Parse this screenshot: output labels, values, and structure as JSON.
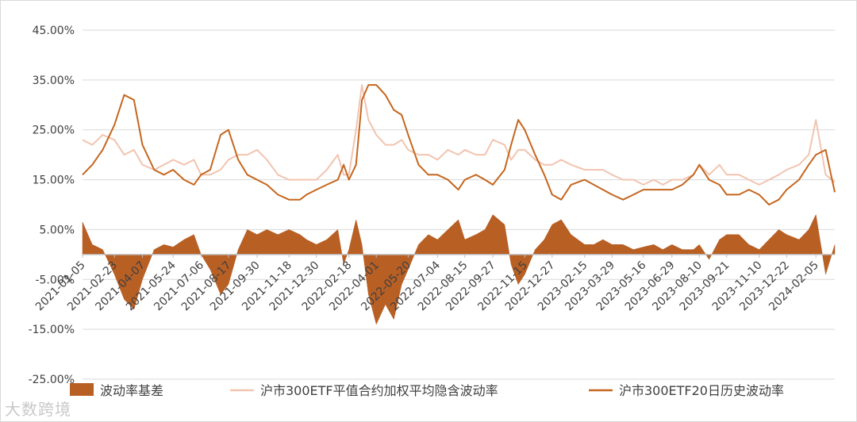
{
  "chart_data": {
    "type": "area",
    "title": "",
    "xlabel": "",
    "ylabel": "",
    "ylim": [
      -0.25,
      0.45
    ],
    "yticks": [
      "45.00%",
      "35.00%",
      "25.00%",
      "15.00%",
      "5.00%",
      "-5.00%",
      "-15.00%",
      "-25.00%"
    ],
    "ytick_values": [
      0.45,
      0.35,
      0.25,
      0.15,
      0.05,
      -0.05,
      -0.15,
      -0.25
    ],
    "xticks": [
      "2021-01-05",
      "2021-02-23",
      "2021-04-07",
      "2021-05-24",
      "2021-07-06",
      "2021-08-17",
      "2021-09-30",
      "2021-11-18",
      "2021-12-30",
      "2022-02-18",
      "2022-04-01",
      "2022-05-20",
      "2022-07-04",
      "2022-08-15",
      "2022-09-27",
      "2022-11-15",
      "2022-12-27",
      "2023-02-15",
      "2023-03-29",
      "2023-05-16",
      "2023-06-29",
      "2023-08-10",
      "2023-09-21",
      "2023-11-10",
      "2023-12-22",
      "2024-02-05"
    ],
    "grid": true,
    "legend_position": "bottom",
    "series": [
      {
        "name": "波动率基差",
        "style": "area",
        "color": "#b85f24",
        "points": [
          [
            "2021-01-05",
            0.065
          ],
          [
            "2021-01-20",
            0.02
          ],
          [
            "2021-02-05",
            0.01
          ],
          [
            "2021-02-23",
            -0.04
          ],
          [
            "2021-03-10",
            -0.09
          ],
          [
            "2021-03-25",
            -0.11
          ],
          [
            "2021-04-07",
            -0.05
          ],
          [
            "2021-04-25",
            0.01
          ],
          [
            "2021-05-10",
            0.02
          ],
          [
            "2021-05-24",
            0.015
          ],
          [
            "2021-06-10",
            0.03
          ],
          [
            "2021-06-25",
            0.04
          ],
          [
            "2021-07-06",
            0.0
          ],
          [
            "2021-07-20",
            -0.03
          ],
          [
            "2021-08-05",
            -0.08
          ],
          [
            "2021-08-17",
            -0.06
          ],
          [
            "2021-09-01",
            0.01
          ],
          [
            "2021-09-15",
            0.05
          ],
          [
            "2021-09-30",
            0.04
          ],
          [
            "2021-10-15",
            0.05
          ],
          [
            "2021-11-01",
            0.04
          ],
          [
            "2021-11-18",
            0.05
          ],
          [
            "2021-12-05",
            0.04
          ],
          [
            "2021-12-15",
            0.03
          ],
          [
            "2021-12-30",
            0.02
          ],
          [
            "2022-01-15",
            0.03
          ],
          [
            "2022-02-01",
            0.05
          ],
          [
            "2022-02-10",
            -0.02
          ],
          [
            "2022-02-18",
            0.01
          ],
          [
            "2022-03-01",
            0.07
          ],
          [
            "2022-03-10",
            0.02
          ],
          [
            "2022-03-20",
            -0.08
          ],
          [
            "2022-04-01",
            -0.14
          ],
          [
            "2022-04-15",
            -0.1
          ],
          [
            "2022-04-28",
            -0.13
          ],
          [
            "2022-05-10",
            -0.06
          ],
          [
            "2022-05-20",
            -0.03
          ],
          [
            "2022-06-05",
            0.02
          ],
          [
            "2022-06-20",
            0.04
          ],
          [
            "2022-07-04",
            0.03
          ],
          [
            "2022-07-20",
            0.05
          ],
          [
            "2022-08-05",
            0.07
          ],
          [
            "2022-08-15",
            0.03
          ],
          [
            "2022-09-01",
            0.04
          ],
          [
            "2022-09-15",
            0.05
          ],
          [
            "2022-09-27",
            0.08
          ],
          [
            "2022-10-15",
            0.06
          ],
          [
            "2022-10-25",
            -0.02
          ],
          [
            "2022-11-05",
            -0.06
          ],
          [
            "2022-11-15",
            -0.04
          ],
          [
            "2022-12-01",
            0.01
          ],
          [
            "2022-12-15",
            0.03
          ],
          [
            "2022-12-27",
            0.06
          ],
          [
            "2023-01-10",
            0.07
          ],
          [
            "2023-01-25",
            0.04
          ],
          [
            "2023-02-15",
            0.02
          ],
          [
            "2023-03-01",
            0.02
          ],
          [
            "2023-03-15",
            0.03
          ],
          [
            "2023-03-29",
            0.02
          ],
          [
            "2023-04-15",
            0.02
          ],
          [
            "2023-05-01",
            0.01
          ],
          [
            "2023-05-16",
            0.015
          ],
          [
            "2023-06-01",
            0.02
          ],
          [
            "2023-06-15",
            0.01
          ],
          [
            "2023-06-29",
            0.02
          ],
          [
            "2023-07-15",
            0.01
          ],
          [
            "2023-08-01",
            0.01
          ],
          [
            "2023-08-10",
            0.02
          ],
          [
            "2023-08-25",
            -0.01
          ],
          [
            "2023-09-10",
            0.03
          ],
          [
            "2023-09-21",
            0.04
          ],
          [
            "2023-10-10",
            0.04
          ],
          [
            "2023-10-25",
            0.02
          ],
          [
            "2023-11-10",
            0.01
          ],
          [
            "2023-11-25",
            0.03
          ],
          [
            "2023-12-10",
            0.05
          ],
          [
            "2023-12-22",
            0.04
          ],
          [
            "2024-01-10",
            0.03
          ],
          [
            "2024-01-25",
            0.05
          ],
          [
            "2024-02-05",
            0.08
          ],
          [
            "2024-02-20",
            -0.04
          ],
          [
            "2024-03-05",
            0.02
          ]
        ]
      },
      {
        "name": "沪市300ETF平值合约加权平均隐含波动率",
        "style": "line",
        "color": "#f2c4b0",
        "points": [
          [
            "2021-01-05",
            0.23
          ],
          [
            "2021-01-20",
            0.22
          ],
          [
            "2021-02-05",
            0.24
          ],
          [
            "2021-02-23",
            0.23
          ],
          [
            "2021-03-10",
            0.2
          ],
          [
            "2021-03-25",
            0.21
          ],
          [
            "2021-04-07",
            0.18
          ],
          [
            "2021-04-25",
            0.17
          ],
          [
            "2021-05-10",
            0.18
          ],
          [
            "2021-05-24",
            0.19
          ],
          [
            "2021-06-10",
            0.18
          ],
          [
            "2021-06-25",
            0.19
          ],
          [
            "2021-07-06",
            0.16
          ],
          [
            "2021-07-20",
            0.16
          ],
          [
            "2021-08-05",
            0.17
          ],
          [
            "2021-08-17",
            0.19
          ],
          [
            "2021-09-01",
            0.2
          ],
          [
            "2021-09-15",
            0.2
          ],
          [
            "2021-09-30",
            0.21
          ],
          [
            "2021-10-15",
            0.19
          ],
          [
            "2021-11-01",
            0.16
          ],
          [
            "2021-11-18",
            0.15
          ],
          [
            "2021-12-05",
            0.15
          ],
          [
            "2021-12-15",
            0.15
          ],
          [
            "2021-12-30",
            0.15
          ],
          [
            "2022-01-15",
            0.17
          ],
          [
            "2022-02-01",
            0.2
          ],
          [
            "2022-02-10",
            0.16
          ],
          [
            "2022-02-18",
            0.16
          ],
          [
            "2022-03-01",
            0.25
          ],
          [
            "2022-03-10",
            0.34
          ],
          [
            "2022-03-20",
            0.27
          ],
          [
            "2022-04-01",
            0.24
          ],
          [
            "2022-04-15",
            0.22
          ],
          [
            "2022-04-28",
            0.22
          ],
          [
            "2022-05-10",
            0.23
          ],
          [
            "2022-05-20",
            0.21
          ],
          [
            "2022-06-05",
            0.2
          ],
          [
            "2022-06-20",
            0.2
          ],
          [
            "2022-07-04",
            0.19
          ],
          [
            "2022-07-20",
            0.21
          ],
          [
            "2022-08-05",
            0.2
          ],
          [
            "2022-08-15",
            0.21
          ],
          [
            "2022-09-01",
            0.2
          ],
          [
            "2022-09-15",
            0.2
          ],
          [
            "2022-09-27",
            0.23
          ],
          [
            "2022-10-15",
            0.22
          ],
          [
            "2022-10-25",
            0.19
          ],
          [
            "2022-11-05",
            0.21
          ],
          [
            "2022-11-15",
            0.21
          ],
          [
            "2022-12-01",
            0.19
          ],
          [
            "2022-12-15",
            0.18
          ],
          [
            "2022-12-27",
            0.18
          ],
          [
            "2023-01-10",
            0.19
          ],
          [
            "2023-01-25",
            0.18
          ],
          [
            "2023-02-15",
            0.17
          ],
          [
            "2023-03-01",
            0.17
          ],
          [
            "2023-03-15",
            0.17
          ],
          [
            "2023-03-29",
            0.16
          ],
          [
            "2023-04-15",
            0.15
          ],
          [
            "2023-05-01",
            0.15
          ],
          [
            "2023-05-16",
            0.14
          ],
          [
            "2023-06-01",
            0.15
          ],
          [
            "2023-06-15",
            0.14
          ],
          [
            "2023-06-29",
            0.15
          ],
          [
            "2023-07-15",
            0.15
          ],
          [
            "2023-08-01",
            0.16
          ],
          [
            "2023-08-10",
            0.18
          ],
          [
            "2023-08-25",
            0.16
          ],
          [
            "2023-09-10",
            0.18
          ],
          [
            "2023-09-21",
            0.16
          ],
          [
            "2023-10-10",
            0.16
          ],
          [
            "2023-10-25",
            0.15
          ],
          [
            "2023-11-10",
            0.14
          ],
          [
            "2023-11-25",
            0.15
          ],
          [
            "2023-12-10",
            0.16
          ],
          [
            "2023-12-22",
            0.17
          ],
          [
            "2024-01-10",
            0.18
          ],
          [
            "2024-01-25",
            0.2
          ],
          [
            "2024-02-05",
            0.27
          ],
          [
            "2024-02-20",
            0.16
          ],
          [
            "2024-03-05",
            0.145
          ]
        ]
      },
      {
        "name": "沪市300ETF20日历史波动率",
        "style": "line",
        "color": "#c5661e",
        "points": [
          [
            "2021-01-05",
            0.16
          ],
          [
            "2021-01-20",
            0.18
          ],
          [
            "2021-02-05",
            0.21
          ],
          [
            "2021-02-23",
            0.26
          ],
          [
            "2021-03-10",
            0.32
          ],
          [
            "2021-03-25",
            0.31
          ],
          [
            "2021-04-07",
            0.22
          ],
          [
            "2021-04-25",
            0.17
          ],
          [
            "2021-05-10",
            0.16
          ],
          [
            "2021-05-24",
            0.17
          ],
          [
            "2021-06-10",
            0.15
          ],
          [
            "2021-06-25",
            0.14
          ],
          [
            "2021-07-06",
            0.16
          ],
          [
            "2021-07-20",
            0.17
          ],
          [
            "2021-08-05",
            0.24
          ],
          [
            "2021-08-17",
            0.25
          ],
          [
            "2021-09-01",
            0.19
          ],
          [
            "2021-09-15",
            0.16
          ],
          [
            "2021-09-30",
            0.15
          ],
          [
            "2021-10-15",
            0.14
          ],
          [
            "2021-11-01",
            0.12
          ],
          [
            "2021-11-18",
            0.11
          ],
          [
            "2021-12-05",
            0.11
          ],
          [
            "2021-12-15",
            0.12
          ],
          [
            "2021-12-30",
            0.13
          ],
          [
            "2022-01-15",
            0.14
          ],
          [
            "2022-02-01",
            0.15
          ],
          [
            "2022-02-10",
            0.18
          ],
          [
            "2022-02-18",
            0.15
          ],
          [
            "2022-03-01",
            0.18
          ],
          [
            "2022-03-10",
            0.31
          ],
          [
            "2022-03-20",
            0.34
          ],
          [
            "2022-04-01",
            0.34
          ],
          [
            "2022-04-15",
            0.32
          ],
          [
            "2022-04-28",
            0.29
          ],
          [
            "2022-05-10",
            0.28
          ],
          [
            "2022-05-20",
            0.24
          ],
          [
            "2022-06-05",
            0.18
          ],
          [
            "2022-06-20",
            0.16
          ],
          [
            "2022-07-04",
            0.16
          ],
          [
            "2022-07-20",
            0.15
          ],
          [
            "2022-08-05",
            0.13
          ],
          [
            "2022-08-15",
            0.15
          ],
          [
            "2022-09-01",
            0.16
          ],
          [
            "2022-09-15",
            0.15
          ],
          [
            "2022-09-27",
            0.14
          ],
          [
            "2022-10-15",
            0.17
          ],
          [
            "2022-10-25",
            0.22
          ],
          [
            "2022-11-05",
            0.27
          ],
          [
            "2022-11-15",
            0.25
          ],
          [
            "2022-12-01",
            0.2
          ],
          [
            "2022-12-15",
            0.16
          ],
          [
            "2022-12-27",
            0.12
          ],
          [
            "2023-01-10",
            0.11
          ],
          [
            "2023-01-25",
            0.14
          ],
          [
            "2023-02-15",
            0.15
          ],
          [
            "2023-03-01",
            0.14
          ],
          [
            "2023-03-15",
            0.13
          ],
          [
            "2023-03-29",
            0.12
          ],
          [
            "2023-04-15",
            0.11
          ],
          [
            "2023-05-01",
            0.12
          ],
          [
            "2023-05-16",
            0.13
          ],
          [
            "2023-06-01",
            0.13
          ],
          [
            "2023-06-15",
            0.13
          ],
          [
            "2023-06-29",
            0.13
          ],
          [
            "2023-07-15",
            0.14
          ],
          [
            "2023-08-01",
            0.16
          ],
          [
            "2023-08-10",
            0.18
          ],
          [
            "2023-08-25",
            0.15
          ],
          [
            "2023-09-10",
            0.14
          ],
          [
            "2023-09-21",
            0.12
          ],
          [
            "2023-10-10",
            0.12
          ],
          [
            "2023-10-25",
            0.13
          ],
          [
            "2023-11-10",
            0.12
          ],
          [
            "2023-11-25",
            0.1
          ],
          [
            "2023-12-10",
            0.11
          ],
          [
            "2023-12-22",
            0.13
          ],
          [
            "2024-01-10",
            0.15
          ],
          [
            "2024-01-25",
            0.18
          ],
          [
            "2024-02-05",
            0.2
          ],
          [
            "2024-02-20",
            0.21
          ],
          [
            "2024-03-05",
            0.125
          ]
        ]
      }
    ]
  },
  "watermark": "大数跨境"
}
